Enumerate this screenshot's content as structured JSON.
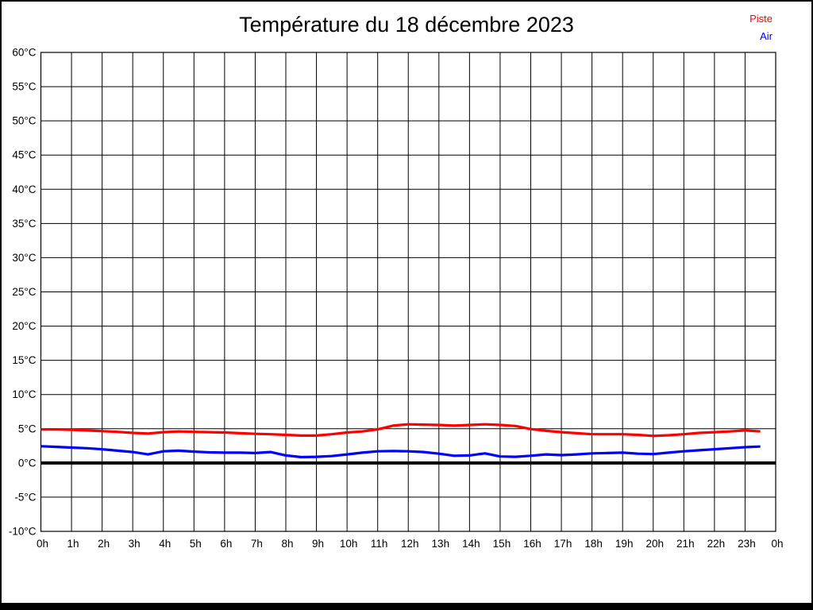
{
  "page": {
    "background": "#ffffff",
    "border_color": "#000000"
  },
  "chart_data": {
    "type": "line",
    "title": "Température du 18 décembre 2023",
    "xlabel": "",
    "ylabel": "",
    "xlim": [
      0,
      24
    ],
    "ylim": [
      -10,
      60
    ],
    "grid": true,
    "legend_position": "top-right",
    "axis_color": "#000000",
    "zero_line": {
      "value": 0,
      "color": "#000000",
      "width": 4
    },
    "x_tick_hours": [
      0,
      1,
      2,
      3,
      4,
      5,
      6,
      7,
      8,
      9,
      10,
      11,
      12,
      13,
      14,
      15,
      16,
      17,
      18,
      19,
      20,
      21,
      22,
      23,
      24
    ],
    "x_tick_labels": [
      "0h",
      "1h",
      "2h",
      "3h",
      "4h",
      "5h",
      "6h",
      "7h",
      "8h",
      "9h",
      "10h",
      "11h",
      "12h",
      "13h",
      "14h",
      "15h",
      "16h",
      "17h",
      "18h",
      "19h",
      "20h",
      "21h",
      "22h",
      "23h",
      "0h"
    ],
    "y_tick_values": [
      60,
      55,
      50,
      45,
      40,
      35,
      30,
      25,
      20,
      15,
      10,
      5,
      0,
      -5,
      -10
    ],
    "y_tick_labels": [
      "60°C",
      "55°C",
      "50°C",
      "45°C",
      "40°C",
      "35°C",
      "30°C",
      "25°C",
      "20°C",
      "15°C",
      "10°C",
      "5°C",
      "0°C",
      "-5°C",
      "-10°C"
    ],
    "x": [
      0,
      0.5,
      1,
      1.5,
      2,
      2.5,
      3,
      3.5,
      4,
      4.5,
      5,
      5.5,
      6,
      6.5,
      7,
      7.5,
      8,
      8.5,
      9,
      9.5,
      10,
      10.5,
      11,
      11.5,
      12,
      12.5,
      13,
      13.5,
      14,
      14.5,
      15,
      15.5,
      16,
      16.5,
      17,
      17.5,
      18,
      18.5,
      19,
      19.5,
      20,
      20.5,
      21,
      21.5,
      22,
      22.5,
      23,
      23.5
    ],
    "series": [
      {
        "name": "Piste",
        "color": "#ff0000",
        "values": [
          4.9,
          4.9,
          4.85,
          4.75,
          4.65,
          4.55,
          4.4,
          4.3,
          4.5,
          4.6,
          4.55,
          4.5,
          4.45,
          4.35,
          4.25,
          4.2,
          4.1,
          4.0,
          4.0,
          4.2,
          4.45,
          4.6,
          4.9,
          5.45,
          5.65,
          5.6,
          5.55,
          5.45,
          5.55,
          5.65,
          5.55,
          5.4,
          4.95,
          4.7,
          4.5,
          4.35,
          4.2,
          4.2,
          4.2,
          4.1,
          3.95,
          4.05,
          4.2,
          4.4,
          4.5,
          4.6,
          4.75,
          4.6
        ]
      },
      {
        "name": "Air",
        "color": "#0000ff",
        "values": [
          2.45,
          2.35,
          2.25,
          2.15,
          2.0,
          1.8,
          1.6,
          1.25,
          1.7,
          1.8,
          1.65,
          1.55,
          1.5,
          1.5,
          1.45,
          1.6,
          1.1,
          0.85,
          0.9,
          1.0,
          1.25,
          1.5,
          1.7,
          1.75,
          1.7,
          1.6,
          1.35,
          1.05,
          1.1,
          1.4,
          0.95,
          0.9,
          1.05,
          1.25,
          1.15,
          1.25,
          1.4,
          1.45,
          1.5,
          1.35,
          1.3,
          1.5,
          1.7,
          1.85,
          2.0,
          2.15,
          2.3,
          2.4
        ]
      }
    ]
  }
}
